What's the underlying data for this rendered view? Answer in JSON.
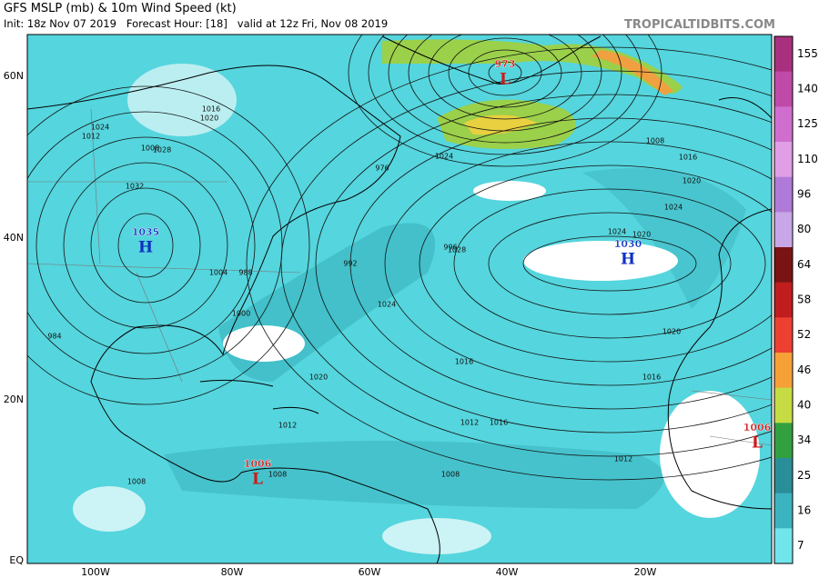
{
  "header": {
    "title": "GFS MSLP (mb) & 10m Wind Speed (kt)",
    "subtitle": "Init: 18z Nov 07 2019   Forecast Hour: [18]   valid at 12z Fri, Nov 08 2019",
    "credit": "TROPICALTIDBITS.COM"
  },
  "axes": {
    "latitude_labels": [
      "60N",
      "40N",
      "20N",
      "EQ"
    ],
    "longitude_labels": [
      "100W",
      "80W",
      "60W",
      "40W",
      "20W"
    ]
  },
  "colorbar": {
    "ticks": [
      155,
      140,
      125,
      110,
      96,
      80,
      64,
      58,
      52,
      46,
      40,
      34,
      25,
      16,
      7
    ],
    "colors": [
      "#a8307f",
      "#c04aa8",
      "#d06ed0",
      "#e09ee6",
      "#b07ad8",
      "#c8a6e8",
      "#7a1414",
      "#c01e1e",
      "#ee4030",
      "#f6a038",
      "#c6dc44",
      "#33a040",
      "#2a8e98",
      "#3cb4c0",
      "#70e6ec"
    ]
  },
  "pressure_centers": [
    {
      "letter": "H",
      "value": "1035"
    },
    {
      "letter": "H",
      "value": "1030"
    },
    {
      "letter": "L",
      "value": "973"
    },
    {
      "letter": "L",
      "value": "1006"
    },
    {
      "letter": "L",
      "value": "1006"
    }
  ],
  "isobar_labels": [
    "1024",
    "1028",
    "1032",
    "1020",
    "1016",
    "1012",
    "1008",
    "1004",
    "1000",
    "984",
    "988",
    "992",
    "996",
    "976",
    "1024",
    "1028",
    "1024",
    "1020",
    "1016",
    "1012",
    "1016",
    "1012",
    "1008",
    "1008",
    "1008",
    "1016",
    "1020",
    "1024",
    "1020",
    "1016",
    "1012",
    "1008",
    "1020",
    "1024"
  ]
}
